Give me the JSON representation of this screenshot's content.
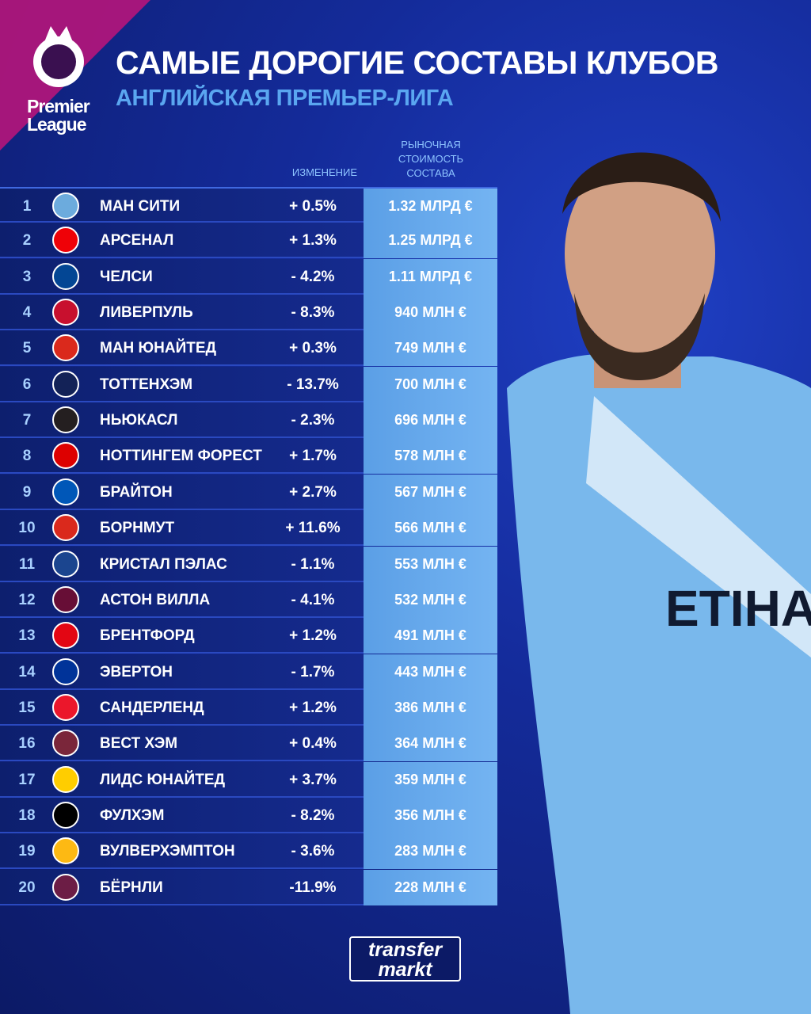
{
  "logo": {
    "lines": [
      "Premier",
      "League"
    ]
  },
  "header": {
    "title": "САМЫЕ ДОРОГИЕ СОСТАВЫ КЛУБОВ",
    "subtitle": "АНГЛИЙСКАЯ ПРЕМЬЕР-ЛИГА"
  },
  "table": {
    "columns": {
      "change": "ИЗМЕНЕНИЕ",
      "value": "РЫНОЧНАЯ СТОИМОСТЬ СОСТАВА"
    },
    "rows": [
      [
        "1",
        "МАН СИТИ",
        "+ 0.5%",
        "1.32 МЛРД €"
      ],
      [
        "2",
        "АРСЕНАЛ",
        "+ 1.3%",
        "1.25 МЛРД €"
      ],
      [
        "3",
        "ЧЕЛСИ",
        "- 4.2%",
        "1.11 МЛРД €"
      ],
      [
        "4",
        "ЛИВЕРПУЛЬ",
        "- 8.3%",
        "940 МЛН €"
      ],
      [
        "5",
        "МАН ЮНАЙТЕД",
        "+ 0.3%",
        "749 МЛН €"
      ],
      [
        "6",
        "ТОТТЕНХЭМ",
        "- 13.7%",
        "700 МЛН €"
      ],
      [
        "7",
        "НЬЮКАСЛ",
        "- 2.3%",
        "696 МЛН €"
      ],
      [
        "8",
        "НОТТИНГЕМ ФОРЕСТ",
        "+ 1.7%",
        "578 МЛН €"
      ],
      [
        "9",
        "БРАЙТОН",
        "+ 2.7%",
        "567 МЛН €"
      ],
      [
        "10",
        "БОРНМУТ",
        "+ 11.6%",
        "566 МЛН €"
      ],
      [
        "11",
        "КРИСТАЛ ПЭЛАС",
        "- 1.1%",
        "553 МЛН €"
      ],
      [
        "12",
        "АСТОН ВИЛЛА",
        "- 4.1%",
        "532 МЛН €"
      ],
      [
        "13",
        "БРЕНТФОРД",
        "+ 1.2%",
        "491 МЛН €"
      ],
      [
        "14",
        "ЭВЕРТОН",
        "- 1.7%",
        "443 МЛН €"
      ],
      [
        "15",
        "САНДЕРЛЕНД",
        "+ 1.2%",
        "386 МЛН €"
      ],
      [
        "16",
        "ВЕСТ ХЭМ",
        "+ 0.4%",
        "364 МЛН €"
      ],
      [
        "17",
        "ЛИДС ЮНАЙТЕД",
        "+ 3.7%",
        "359 МЛН €"
      ],
      [
        "18",
        "ФУЛХЭМ",
        "- 8.2%",
        "356 МЛН €"
      ],
      [
        "19",
        "ВУЛВЕРХЭМПТОН",
        "- 3.6%",
        "283 МЛН €"
      ],
      [
        "20",
        "БЁРНЛИ",
        "-11.9%",
        "228 МЛН €"
      ]
    ]
  },
  "footer": {
    "brand": [
      "transfer",
      "markt"
    ]
  }
}
